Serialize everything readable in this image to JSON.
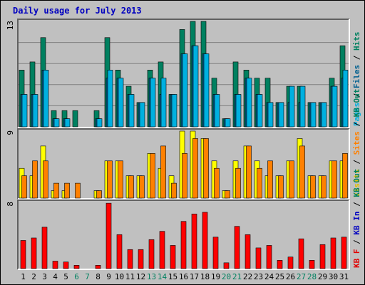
{
  "chart_data": {
    "type": "bar",
    "title": "Daily usage for July 2013",
    "categories": [
      "1",
      "2",
      "3",
      "4",
      "5",
      "6",
      "7",
      "8",
      "9",
      "10",
      "11",
      "12",
      "13",
      "14",
      "15",
      "16",
      "17",
      "18",
      "19",
      "20",
      "21",
      "22",
      "23",
      "24",
      "25",
      "26",
      "27",
      "28",
      "29",
      "30",
      "31"
    ],
    "weekend_days": [
      6,
      7,
      13,
      14,
      20,
      21,
      27,
      28
    ],
    "panels": [
      {
        "ymax": 13,
        "ymax_label": "13",
        "legend": [
          {
            "text": "Pages",
            "color": "#00b0e0"
          },
          {
            "text": " / ",
            "color": "#000000"
          },
          {
            "text": "Files",
            "color": "#006090"
          },
          {
            "text": " / ",
            "color": "#000000"
          },
          {
            "text": "Hits",
            "color": "#008060"
          }
        ],
        "series": [
          {
            "name": "Hits",
            "color": "#008060",
            "values": [
              7,
              8,
              11,
              2,
              2,
              2,
              0,
              2,
              11,
              7,
              5,
              3,
              7,
              8,
              4,
              12,
              13,
              13,
              6,
              1,
              8,
              7,
              6,
              6,
              3,
              5,
              5,
              3,
              3,
              6,
              10
            ]
          },
          {
            "name": "Files",
            "color": "#006090",
            "values": [
              4,
              4,
              7,
              1,
              1,
              0,
              0,
              1,
              6,
              6,
              4,
              3,
              6,
              4,
              4,
              9,
              10,
              9,
              4,
              1,
              4,
              6,
              4,
              3,
              3,
              3,
              3,
              3,
              3,
              5,
              6
            ]
          },
          {
            "name": "Pages",
            "color": "#00b0e0",
            "values": [
              4,
              4,
              7,
              1,
              1,
              0,
              0,
              1,
              7,
              6,
              4,
              3,
              6,
              6,
              4,
              9,
              10,
              9,
              4,
              1,
              4,
              6,
              4,
              3,
              3,
              5,
              5,
              3,
              3,
              5,
              7
            ]
          }
        ]
      },
      {
        "ymax": 9,
        "ymax_label": "9",
        "legend": [
          {
            "text": "Visits",
            "color": "#e0c000"
          },
          {
            "text": " / ",
            "color": "#000000"
          },
          {
            "text": "Sites",
            "color": "#ff8000"
          },
          {
            "text": " / ",
            "color": "#000000"
          },
          {
            "text": "KB Out",
            "color": "#008060"
          }
        ],
        "series": [
          {
            "name": "Visits",
            "color": "#ffff00",
            "values": [
              4,
              3,
              7,
              1,
              1,
              0,
              0,
              1,
              5,
              5,
              3,
              3,
              6,
              4,
              3,
              9,
              9,
              8,
              5,
              1,
              5,
              7,
              5,
              3,
              3,
              5,
              8,
              3,
              3,
              5,
              5
            ]
          },
          {
            "name": "Sites",
            "color": "#ff8000",
            "values": [
              3,
              5,
              5,
              2,
              2,
              2,
              0,
              1,
              5,
              5,
              3,
              3,
              6,
              7,
              2,
              6,
              8,
              8,
              4,
              1,
              4,
              7,
              4,
              5,
              3,
              5,
              7,
              3,
              3,
              5,
              6
            ]
          }
        ]
      },
      {
        "ymax": 8,
        "ymax_label": "8",
        "legend": [
          {
            "text": "KB F",
            "color": "#e00000"
          },
          {
            "text": " / ",
            "color": "#000000"
          },
          {
            "text": "KB In",
            "color": "#0000c0"
          },
          {
            "text": " / ",
            "color": "#000000"
          },
          {
            "text": "KB Out",
            "color": "#008060"
          }
        ],
        "series": [
          {
            "name": "KB F",
            "color": "#ff0000",
            "values": [
              3.4,
              3.7,
              5.0,
              0.9,
              0.8,
              0.4,
              0,
              0.4,
              7.9,
              4.1,
              2.3,
              2.3,
              3.5,
              4.5,
              2.8,
              5.7,
              6.6,
              6.8,
              3.8,
              0.7,
              5.1,
              4.1,
              2.5,
              2.8,
              1.0,
              1.4,
              3.6,
              1.0,
              2.9,
              3.7,
              3.8
            ]
          }
        ]
      }
    ],
    "grid": true,
    "legend_position": "right-vertical"
  }
}
